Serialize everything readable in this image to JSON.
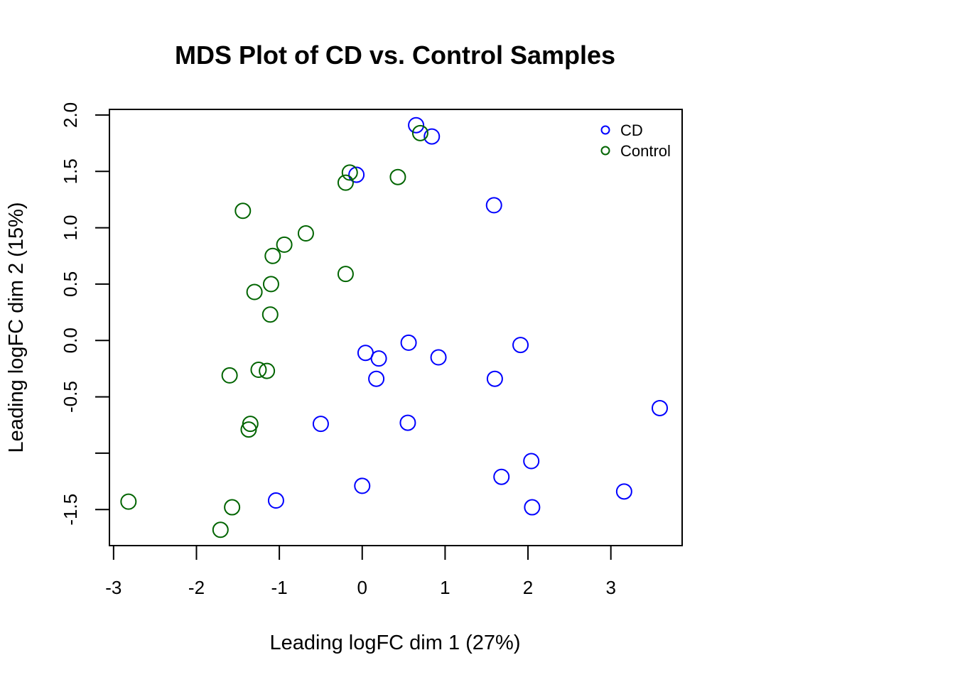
{
  "chart_data": {
    "type": "scatter",
    "title": "MDS Plot of CD vs. Control Samples",
    "xlabel": "Leading logFC dim 1 (27%)",
    "ylabel": "Leading logFC dim 2 (15%)",
    "xlim": [
      -3.05,
      3.86
    ],
    "ylim": [
      -1.82,
      2.05
    ],
    "x_ticks": [
      -3,
      -2,
      -1,
      0,
      1,
      2,
      3
    ],
    "x_tick_labels": [
      "-3",
      "-2",
      "-1",
      "0",
      "1",
      "2",
      "3"
    ],
    "y_ticks": [
      -1.5,
      -1.0,
      -0.5,
      0.0,
      0.5,
      1.0,
      1.5,
      2.0
    ],
    "y_tick_labels": [
      "-1.5",
      "",
      "-0.5",
      "0.0",
      "0.5",
      "1.0",
      "1.5",
      "2.0"
    ],
    "grid": false,
    "legend_position": "top-right",
    "series": [
      {
        "name": "CD",
        "color": "#0000ff",
        "marker": "open-circle",
        "points": [
          [
            0.65,
            1.91
          ],
          [
            0.84,
            1.81
          ],
          [
            -0.07,
            1.47
          ],
          [
            1.59,
            1.2
          ],
          [
            0.56,
            -0.02
          ],
          [
            1.91,
            -0.04
          ],
          [
            0.04,
            -0.11
          ],
          [
            0.2,
            -0.16
          ],
          [
            0.92,
            -0.15
          ],
          [
            0.17,
            -0.34
          ],
          [
            1.6,
            -0.34
          ],
          [
            3.59,
            -0.6
          ],
          [
            -0.5,
            -0.74
          ],
          [
            0.55,
            -0.73
          ],
          [
            2.04,
            -1.07
          ],
          [
            1.68,
            -1.21
          ],
          [
            0.0,
            -1.29
          ],
          [
            3.16,
            -1.34
          ],
          [
            -1.04,
            -1.42
          ],
          [
            2.05,
            -1.48
          ]
        ]
      },
      {
        "name": "Control",
        "color": "#006400",
        "marker": "open-circle",
        "points": [
          [
            0.7,
            1.84
          ],
          [
            -0.15,
            1.49
          ],
          [
            -0.2,
            1.4
          ],
          [
            0.43,
            1.45
          ],
          [
            -1.44,
            1.15
          ],
          [
            -0.68,
            0.95
          ],
          [
            -0.94,
            0.85
          ],
          [
            -1.08,
            0.75
          ],
          [
            -0.2,
            0.59
          ],
          [
            -1.1,
            0.5
          ],
          [
            -1.3,
            0.43
          ],
          [
            -1.11,
            0.23
          ],
          [
            -1.25,
            -0.26
          ],
          [
            -1.15,
            -0.27
          ],
          [
            -1.6,
            -0.31
          ],
          [
            -1.35,
            -0.74
          ],
          [
            -1.37,
            -0.79
          ],
          [
            -2.82,
            -1.43
          ],
          [
            -1.57,
            -1.48
          ],
          [
            -1.71,
            -1.68
          ]
        ]
      }
    ]
  }
}
